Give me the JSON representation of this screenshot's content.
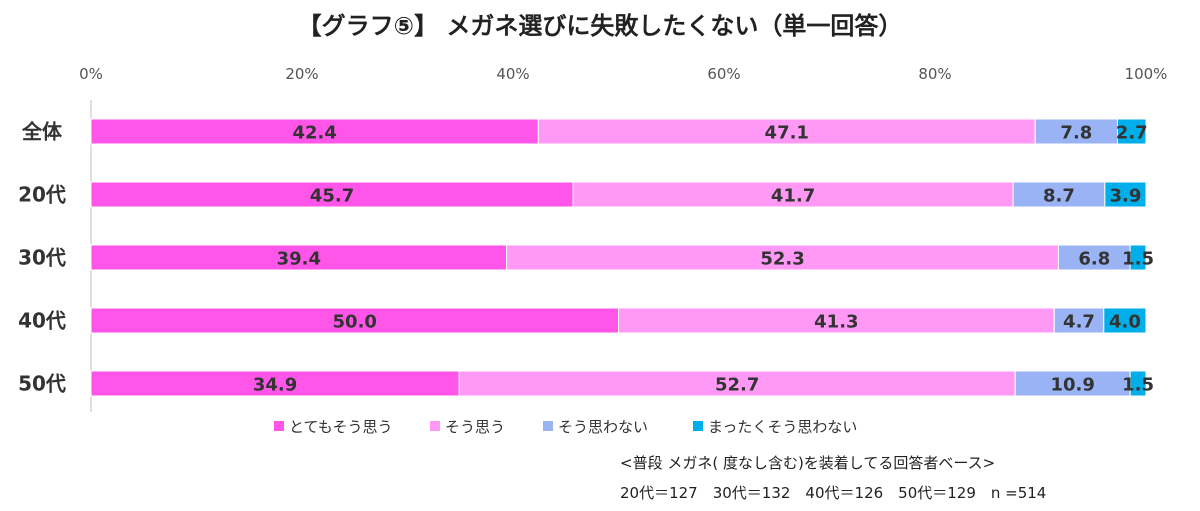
{
  "chart_data": {
    "type": "bar",
    "orientation": "horizontal",
    "stacked": true,
    "title": "【グラフ⑤】 メガネ選びに失敗したくない（単一回答）",
    "categories": [
      "全体",
      "20代",
      "30代",
      "40代",
      "50代"
    ],
    "series": [
      {
        "name": "とてもそう思う",
        "values": [
          42.4,
          45.7,
          39.4,
          50.0,
          34.9
        ],
        "labels": [
          "42.4",
          "45.7",
          "39.4",
          "50.0",
          "34.9"
        ]
      },
      {
        "name": "そう思う",
        "values": [
          47.1,
          41.7,
          52.3,
          41.3,
          52.7
        ],
        "labels": [
          "47.1",
          "41.7",
          "52.3",
          "41.3",
          "52.7"
        ]
      },
      {
        "name": "そう思わない",
        "values": [
          7.8,
          8.7,
          6.8,
          4.7,
          10.9
        ],
        "labels": [
          "7.8",
          "8.7",
          "6.8",
          "4.7",
          "10.9"
        ]
      },
      {
        "name": "まったくそう思わない",
        "values": [
          2.7,
          3.9,
          1.5,
          4.0,
          1.5
        ],
        "labels": [
          "2.7",
          "3.9",
          "1.5",
          "4.0",
          "1.5"
        ]
      }
    ],
    "colors": [
      "#ff55e8",
      "#ff99f5",
      "#99b3f5",
      "#00aeea"
    ],
    "xlim": [
      0,
      100
    ],
    "xticks": [
      "0%",
      "20%",
      "40%",
      "60%",
      "80%",
      "100%"
    ],
    "legend_position": "bottom",
    "grid": false
  },
  "notes": {
    "base": "<普段 メガネ( 度なし含む)を装着してる回答者ベース>",
    "samples": "20代＝127　30代＝132　40代＝126　50代＝129　n =514"
  }
}
